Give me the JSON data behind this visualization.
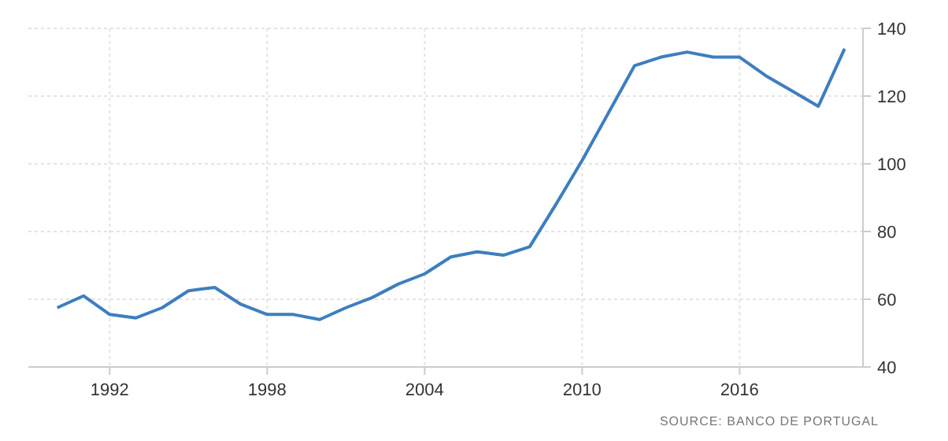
{
  "chart_data": {
    "type": "line",
    "x": [
      1990,
      1991,
      1992,
      1993,
      1994,
      1995,
      1996,
      1997,
      1998,
      1999,
      2000,
      2001,
      2002,
      2003,
      2004,
      2005,
      2006,
      2007,
      2008,
      2009,
      2010,
      2011,
      2012,
      2013,
      2014,
      2015,
      2016,
      2017,
      2018,
      2019,
      2020
    ],
    "series": [
      {
        "color": "#3d7ebf",
        "values": [
          57.5,
          61,
          55.5,
          54.5,
          57.5,
          62.5,
          63.5,
          58.5,
          55.5,
          55.5,
          54,
          57.5,
          60.5,
          64.5,
          67.5,
          72.5,
          74,
          73,
          75.5,
          88,
          101,
          115,
          129,
          131.5,
          133,
          131.5,
          131.5,
          126,
          121.5,
          117,
          134
        ]
      }
    ],
    "xlim": [
      1988.9,
      2020.7
    ],
    "xticks": [
      1992,
      1998,
      2004,
      2010,
      2016
    ],
    "ylim": [
      40,
      140
    ],
    "yticks": [
      40,
      60,
      80,
      100,
      120,
      140
    ],
    "grid": true,
    "line_style": "solid",
    "annotations": [
      "SOURCE: BANCO DE PORTUGAL"
    ]
  }
}
